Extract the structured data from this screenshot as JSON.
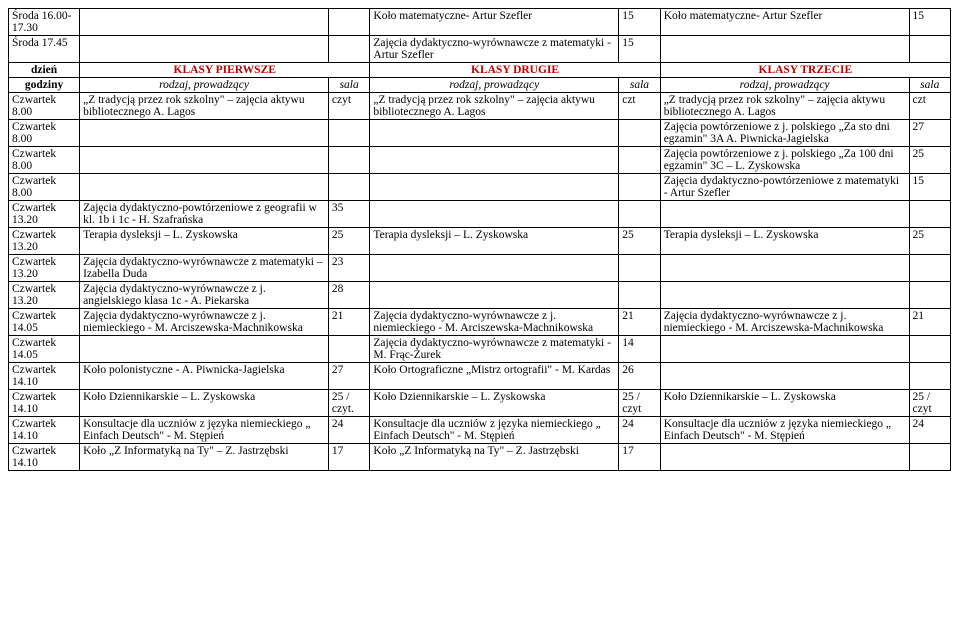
{
  "headers": {
    "dzien": "dzień",
    "godziny": "godziny",
    "k1": "KLASY PIERWSZE",
    "k2": "KLASY DRUGIE",
    "k3": "KLASY TRZECIE",
    "rodzaj": "rodzaj, prowadzący",
    "sala": "sala"
  },
  "rows": [
    {
      "d": "Środa 16.00-17.30",
      "a": "",
      "as": "",
      "b": "Koło matematyczne- Artur Szefler",
      "bs": "15",
      "c": "Koło matematyczne- Artur Szefler",
      "cs": "15"
    },
    {
      "d": "Środa 17.45",
      "a": "",
      "as": "",
      "b": "Zajęcia dydaktyczno-wyrównawcze z matematyki - Artur Szefler",
      "bs": "15",
      "c": "",
      "cs": ""
    }
  ],
  "rows2": [
    {
      "d": "Czwartek 8.00",
      "a": "„Z tradycją przez rok szkolny\" – zajęcia aktywu bibliotecznego A. Lagos",
      "as": "czyt",
      "b": "„Z tradycją przez rok szkolny\" – zajęcia aktywu bibliotecznego A. Lagos",
      "bs": "czt",
      "c": "„Z tradycją przez rok szkolny\" – zajęcia aktywu bibliotecznego A. Lagos",
      "cs": "czt"
    },
    {
      "d": "Czwartek 8.00",
      "a": "",
      "as": "",
      "b": "",
      "bs": "",
      "c": "Zajęcia powtórzeniowe z j. polskiego „Za sto dni egzamin\" 3A  A. Piwnicka-Jagielska",
      "cs": "27"
    },
    {
      "d": "Czwartek 8.00",
      "a": "",
      "as": "",
      "b": "",
      "bs": "",
      "c": "Zajęcia powtórzeniowe z j. polskiego „Za 100 dni egzamin\" 3C  – L. Zyskowska",
      "cs": "25"
    },
    {
      "d": "Czwartek 8.00",
      "a": "",
      "as": "",
      "b": "",
      "bs": "",
      "c": "Zajęcia dydaktyczno-powtórzeniowe z matematyki - Artur Szefler",
      "cs": "15"
    },
    {
      "d": "Czwartek 13.20",
      "a": "Zajęcia dydaktyczno-powtórzeniowe z geografii w kl. 1b i 1c - H. Szafrańska",
      "as": "35",
      "b": "",
      "bs": "",
      "c": "",
      "cs": ""
    },
    {
      "d": "Czwartek 13.20",
      "a": "Terapia dysleksji – L. Zyskowska",
      "as": "25",
      "b": "Terapia dysleksji – L. Zyskowska",
      "bs": "25",
      "c": "Terapia dysleksji – L. Zyskowska",
      "cs": "25"
    },
    {
      "d": "Czwartek 13.20",
      "a": "Zajęcia dydaktyczno-wyrównawcze z matematyki – Izabella Duda",
      "as": "23",
      "b": "",
      "bs": "",
      "c": "",
      "cs": ""
    },
    {
      "d": "Czwartek 13.20",
      "a": "Zajęcia dydaktyczno-wyrównawcze z j. angielskiego klasa 1c - A. Piekarska",
      "as": "28",
      "b": "",
      "bs": "",
      "c": "",
      "cs": ""
    },
    {
      "d": "Czwartek 14.05",
      "a": "Zajęcia dydaktyczno-wyrównawcze z j. niemieckiego - M. Arciszewska-Machnikowska",
      "as": "21",
      "b": "Zajęcia dydaktyczno-wyrównawcze z j. niemieckiego - M. Arciszewska-Machnikowska",
      "bs": "21",
      "c": "Zajęcia dydaktyczno-wyrównawcze z j. niemieckiego - M. Arciszewska-Machnikowska",
      "cs": "21"
    },
    {
      "d": "Czwartek 14.05",
      "a": "",
      "as": "",
      "b": "Zajęcia dydaktyczno-wyrównawcze z matematyki - M. Frąc-Żurek",
      "bs": "14",
      "c": "",
      "cs": ""
    },
    {
      "d": "Czwartek 14.10",
      "a": "Koło polonistyczne - A. Piwnicka-Jagielska",
      "as": "27",
      "b": "Koło Ortograficzne „Mistrz ortografii\" - M. Kardas",
      "bs": "26",
      "c": "",
      "cs": ""
    },
    {
      "d": "Czwartek 14.10",
      "a": "Koło Dziennikarskie – L. Zyskowska",
      "as": "25 / czyt.",
      "b": "Koło Dziennikarskie – L. Zyskowska",
      "bs": "25 / czyt",
      "c": "Koło Dziennikarskie – L. Zyskowska",
      "cs": "25 / czyt"
    },
    {
      "d": "Czwartek 14.10",
      "a": "Konsultacje dla uczniów z języka niemieckiego „ Einfach Deutsch\" - M. Stępień",
      "as": "24",
      "b": "Konsultacje dla uczniów z języka niemieckiego „ Einfach Deutsch\" - M. Stępień",
      "bs": "24",
      "c": "Konsultacje dla uczniów z języka niemieckiego „ Einfach Deutsch\" - M. Stępień",
      "cs": "24"
    },
    {
      "d": "Czwartek 14.10",
      "a": "Koło „Z Informatyką na Ty\" – Z. Jastrzębski",
      "as": "17",
      "b": "Koło „Z Informatyką na Ty\" – Z. Jastrzębski",
      "bs": "17",
      "c": "",
      "cs": ""
    }
  ]
}
